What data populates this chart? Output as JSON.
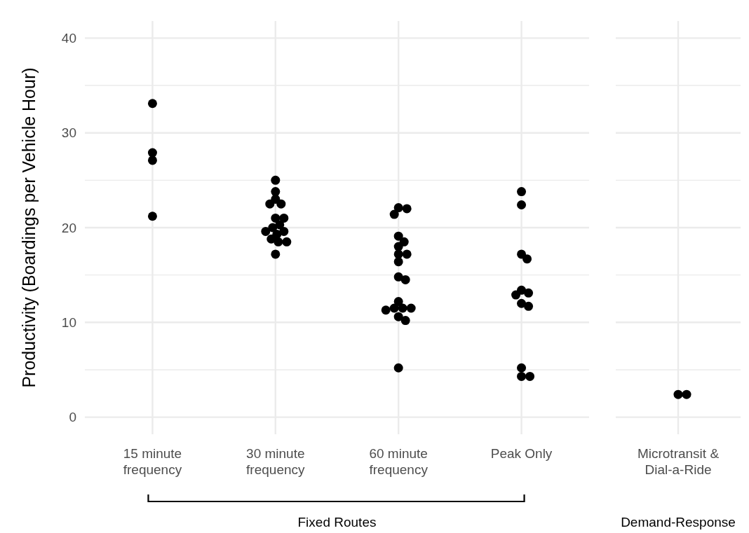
{
  "chart_data": [
    {
      "type": "scatter",
      "ylabel": "Productivity (Boardings per Vehicle Hour)",
      "categories": [
        "15 minute frequency",
        "30 minute frequency",
        "60 minute frequency",
        "Peak Only"
      ],
      "series": [
        {
          "color": "#000000",
          "x": [
            "15 minute frequency",
            "15 minute frequency",
            "15 minute frequency",
            "15 minute frequency",
            "30 minute frequency",
            "30 minute frequency",
            "30 minute frequency",
            "30 minute frequency",
            "30 minute frequency",
            "30 minute frequency",
            "30 minute frequency",
            "30 minute frequency",
            "30 minute frequency",
            "30 minute frequency",
            "30 minute frequency",
            "30 minute frequency",
            "30 minute frequency",
            "30 minute frequency",
            "30 minute frequency",
            "30 minute frequency",
            "60 minute frequency",
            "60 minute frequency",
            "60 minute frequency",
            "60 minute frequency",
            "60 minute frequency",
            "60 minute frequency",
            "60 minute frequency",
            "60 minute frequency",
            "60 minute frequency",
            "60 minute frequency",
            "60 minute frequency",
            "60 minute frequency",
            "60 minute frequency",
            "60 minute frequency",
            "60 minute frequency",
            "60 minute frequency",
            "60 minute frequency",
            "60 minute frequency",
            "60 minute frequency",
            "Peak Only",
            "Peak Only",
            "Peak Only",
            "Peak Only",
            "Peak Only",
            "Peak Only",
            "Peak Only",
            "Peak Only",
            "Peak Only",
            "Peak Only",
            "Peak Only",
            "Peak Only"
          ],
          "values": [
            33.1,
            27.9,
            27.1,
            21.2,
            25.0,
            23.8,
            23.0,
            22.5,
            22.5,
            21.0,
            21.0,
            20.3,
            20.0,
            19.6,
            19.6,
            19.3,
            18.8,
            18.5,
            18.5,
            17.2,
            22.1,
            22.0,
            21.4,
            19.1,
            18.5,
            18.0,
            17.2,
            17.2,
            16.4,
            14.8,
            14.5,
            12.2,
            11.5,
            11.5,
            11.5,
            11.3,
            10.6,
            10.2,
            5.2,
            23.8,
            22.4,
            17.2,
            16.7,
            13.4,
            13.1,
            12.9,
            12.0,
            11.7,
            5.2,
            4.3,
            4.3
          ]
        }
      ],
      "ylim": [
        -1.8,
        41.8
      ],
      "yticks": [
        0,
        {
          "value": 5,
          "label": null
        },
        10,
        {
          "value": 15,
          "label": null
        },
        20,
        {
          "value": 25,
          "label": null
        },
        30,
        {
          "value": 35,
          "label": null
        },
        40
      ],
      "grid": true,
      "marker": "circle",
      "annotations": [
        "Fixed Routes"
      ]
    },
    {
      "type": "scatter",
      "categories": [
        "Microtransit & Dial-a-Ride"
      ],
      "series": [
        {
          "color": "#000000",
          "x": [
            "Microtransit & Dial-a-Ride",
            "Microtransit & Dial-a-Ride"
          ],
          "values": [
            2.4,
            2.4
          ]
        }
      ],
      "ylim": [
        -1.8,
        41.8
      ],
      "yticks": [
        0,
        {
          "value": 5,
          "label": null
        },
        10,
        {
          "value": 15,
          "label": null
        },
        20,
        {
          "value": 25,
          "label": null
        },
        30,
        {
          "value": 35,
          "label": null
        },
        40
      ],
      "grid": true,
      "marker": "circle",
      "tick_labels": "x",
      "annotations": [
        "Demand-Response"
      ]
    }
  ]
}
